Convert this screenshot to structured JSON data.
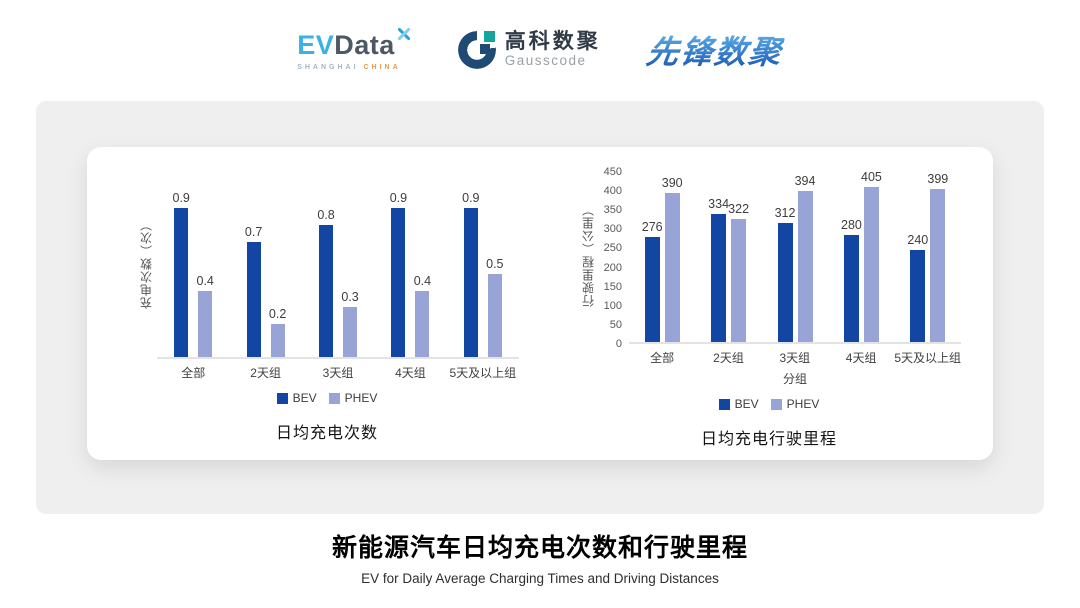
{
  "logos": {
    "evdata": {
      "ev": "EV",
      "data": "Data",
      "sub_left": "SHANGHAI",
      "sub_right": "CHINA"
    },
    "gausscode": {
      "cn": "高科数聚",
      "en": "Gausscode"
    },
    "xianfeng": {
      "text": "先锋数聚"
    }
  },
  "colors": {
    "bev": "#1346A2",
    "phev": "#98A4D6"
  },
  "chart_data": [
    {
      "type": "bar",
      "title": "日均充电次数",
      "ylabel": "充电次数（次）",
      "xlabel": "",
      "categories": [
        "全部",
        "2天组",
        "3天组",
        "4天组",
        "5天及以上组"
      ],
      "series": [
        {
          "name": "BEV",
          "values": [
            0.9,
            0.7,
            0.8,
            0.9,
            0.9
          ]
        },
        {
          "name": "PHEV",
          "values": [
            0.4,
            0.2,
            0.3,
            0.4,
            0.5
          ]
        }
      ],
      "ylim": [
        0,
        1.0
      ],
      "grid": false,
      "legend_position": "bottom"
    },
    {
      "type": "bar",
      "title": "日均充电行驶里程",
      "ylabel": "行驶里程（公里）",
      "xlabel": "分组",
      "categories": [
        "全部",
        "2天组",
        "3天组",
        "4天组",
        "5天及以上组"
      ],
      "series": [
        {
          "name": "BEV",
          "values": [
            276,
            334,
            312,
            280,
            240
          ]
        },
        {
          "name": "PHEV",
          "values": [
            390,
            322,
            394,
            405,
            399
          ]
        }
      ],
      "ylim": [
        0,
        450
      ],
      "yticks": [
        0,
        50,
        100,
        150,
        200,
        250,
        300,
        350,
        400,
        450
      ],
      "grid": false,
      "legend_position": "bottom"
    }
  ],
  "footer": {
    "title": "新能源汽车日均充电次数和行驶里程",
    "subtitle": "EV for Daily Average Charging Times and Driving Distances"
  }
}
